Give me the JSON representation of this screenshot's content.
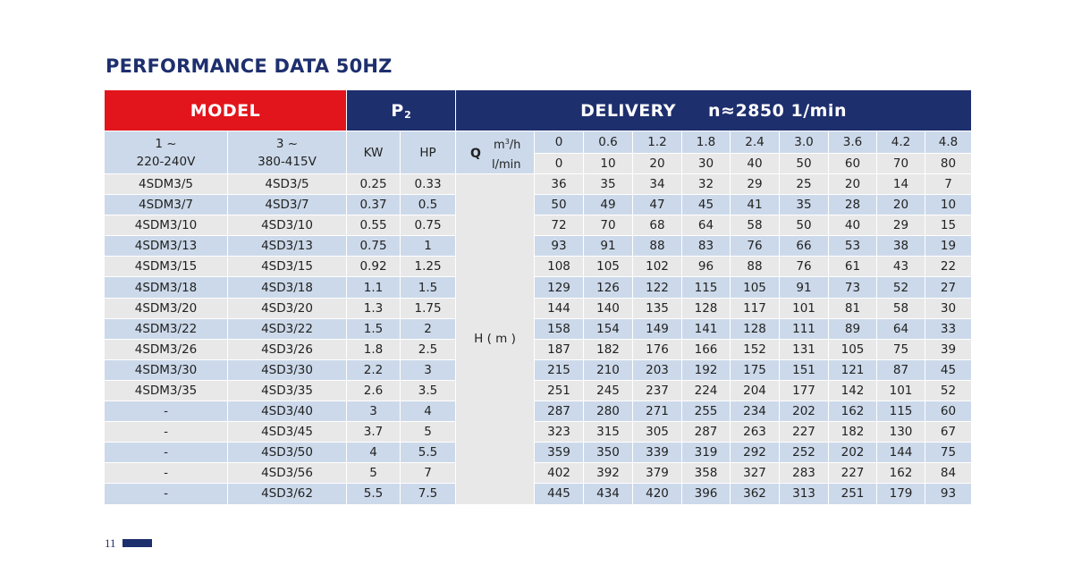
{
  "title": "PERFORMANCE DATA 50HZ",
  "header": {
    "model": "MODEL",
    "p2": "P",
    "p2_sub": "2",
    "delivery": "DELIVERY",
    "speed": "n≈2850 1/min",
    "single_phase_line1": "1 ~",
    "single_phase_line2": "220-240V",
    "three_phase_line1": "3 ~",
    "three_phase_line2": "380-415V",
    "kw": "KW",
    "hp": "HP",
    "q_label": "Q",
    "q_unit_m3": "m",
    "q_unit_m3_sup": "3",
    "q_unit_m3_tail": "/h",
    "q_unit_l": "l/min",
    "h_label": "H",
    "h_unit": "( m )"
  },
  "flow_m3h": [
    "0",
    "0.6",
    "1.2",
    "1.8",
    "2.4",
    "3.0",
    "3.6",
    "4.2",
    "4.8"
  ],
  "flow_lmin": [
    "0",
    "10",
    "20",
    "30",
    "40",
    "50",
    "60",
    "70",
    "80"
  ],
  "rows": [
    {
      "single": "4SDM3/5",
      "three": "4SD3/5",
      "kw": "0.25",
      "hp": "0.33",
      "head": [
        "36",
        "35",
        "34",
        "32",
        "29",
        "25",
        "20",
        "14",
        "7"
      ]
    },
    {
      "single": "4SDM3/7",
      "three": "4SD3/7",
      "kw": "0.37",
      "hp": "0.5",
      "head": [
        "50",
        "49",
        "47",
        "45",
        "41",
        "35",
        "28",
        "20",
        "10"
      ]
    },
    {
      "single": "4SDM3/10",
      "three": "4SD3/10",
      "kw": "0.55",
      "hp": "0.75",
      "head": [
        "72",
        "70",
        "68",
        "64",
        "58",
        "50",
        "40",
        "29",
        "15"
      ]
    },
    {
      "single": "4SDM3/13",
      "three": "4SD3/13",
      "kw": "0.75",
      "hp": "1",
      "head": [
        "93",
        "91",
        "88",
        "83",
        "76",
        "66",
        "53",
        "38",
        "19"
      ]
    },
    {
      "single": "4SDM3/15",
      "three": "4SD3/15",
      "kw": "0.92",
      "hp": "1.25",
      "head": [
        "108",
        "105",
        "102",
        "96",
        "88",
        "76",
        "61",
        "43",
        "22"
      ]
    },
    {
      "single": "4SDM3/18",
      "three": "4SD3/18",
      "kw": "1.1",
      "hp": "1.5",
      "head": [
        "129",
        "126",
        "122",
        "115",
        "105",
        "91",
        "73",
        "52",
        "27"
      ]
    },
    {
      "single": "4SDM3/20",
      "three": "4SD3/20",
      "kw": "1.3",
      "hp": "1.75",
      "head": [
        "144",
        "140",
        "135",
        "128",
        "117",
        "101",
        "81",
        "58",
        "30"
      ]
    },
    {
      "single": "4SDM3/22",
      "three": "4SD3/22",
      "kw": "1.5",
      "hp": "2",
      "head": [
        "158",
        "154",
        "149",
        "141",
        "128",
        "111",
        "89",
        "64",
        "33"
      ]
    },
    {
      "single": "4SDM3/26",
      "three": "4SD3/26",
      "kw": "1.8",
      "hp": "2.5",
      "head": [
        "187",
        "182",
        "176",
        "166",
        "152",
        "131",
        "105",
        "75",
        "39"
      ]
    },
    {
      "single": "4SDM3/30",
      "three": "4SD3/30",
      "kw": "2.2",
      "hp": "3",
      "head": [
        "215",
        "210",
        "203",
        "192",
        "175",
        "151",
        "121",
        "87",
        "45"
      ]
    },
    {
      "single": "4SDM3/35",
      "three": "4SD3/35",
      "kw": "2.6",
      "hp": "3.5",
      "head": [
        "251",
        "245",
        "237",
        "224",
        "204",
        "177",
        "142",
        "101",
        "52"
      ]
    },
    {
      "single": "-",
      "three": "4SD3/40",
      "kw": "3",
      "hp": "4",
      "head": [
        "287",
        "280",
        "271",
        "255",
        "234",
        "202",
        "162",
        "115",
        "60"
      ]
    },
    {
      "single": "-",
      "three": "4SD3/45",
      "kw": "3.7",
      "hp": "5",
      "head": [
        "323",
        "315",
        "305",
        "287",
        "263",
        "227",
        "182",
        "130",
        "67"
      ]
    },
    {
      "single": "-",
      "three": "4SD3/50",
      "kw": "4",
      "hp": "5.5",
      "head": [
        "359",
        "350",
        "339",
        "319",
        "292",
        "252",
        "202",
        "144",
        "75"
      ]
    },
    {
      "single": "-",
      "three": "4SD3/56",
      "kw": "5",
      "hp": "7",
      "head": [
        "402",
        "392",
        "379",
        "358",
        "327",
        "283",
        "227",
        "162",
        "84"
      ]
    },
    {
      "single": "-",
      "three": "4SD3/62",
      "kw": "5.5",
      "hp": "7.5",
      "head": [
        "445",
        "434",
        "420",
        "396",
        "362",
        "313",
        "251",
        "179",
        "93"
      ]
    }
  ],
  "page_number": "11",
  "colors": {
    "navy": "#1e2f6e",
    "red": "#e2141c",
    "light_blue": "#ccd9ea",
    "light_gray": "#e8e8e8"
  }
}
